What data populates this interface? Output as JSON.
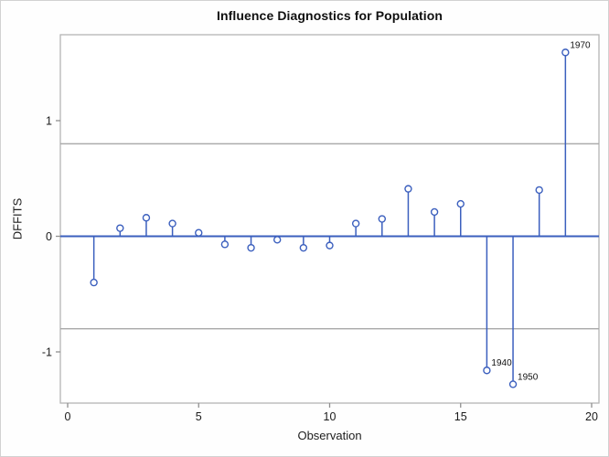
{
  "title": "Influence Diagnostics for Population",
  "chart_data": {
    "type": "stem",
    "title": "Influence Diagnostics for Population",
    "xlabel": "Observation",
    "ylabel": "DFFITS",
    "x": [
      1,
      2,
      3,
      4,
      5,
      6,
      7,
      8,
      9,
      10,
      11,
      12,
      13,
      14,
      15,
      16,
      17,
      18,
      19
    ],
    "values": [
      -0.4,
      0.07,
      0.16,
      0.11,
      0.03,
      -0.07,
      -0.1,
      -0.03,
      -0.1,
      -0.08,
      0.11,
      0.15,
      0.41,
      0.21,
      0.28,
      -1.16,
      -1.28,
      0.4,
      1.59
    ],
    "point_labels": {
      "16": "1940",
      "17": "1950",
      "19": "1970"
    },
    "baseline": 0,
    "reference_lines": [
      0.8,
      -0.8
    ],
    "x_ticks": [
      0,
      5,
      10,
      15,
      20
    ],
    "y_ticks": [
      -1,
      0,
      1
    ],
    "xlim": [
      0,
      20
    ],
    "ylim": [
      -1.44,
      1.74
    ],
    "grid": "off",
    "legend": "none"
  },
  "colors": {
    "series_blue": "#3B5FBE",
    "reference_gray": "#a8a8a8",
    "frame_gray": "#b5b5b5",
    "tick_gray": "#8f8f8f",
    "tick_label": "#1a1a1a",
    "annotation_text": "#111111",
    "wall_white": "#ffffff"
  }
}
